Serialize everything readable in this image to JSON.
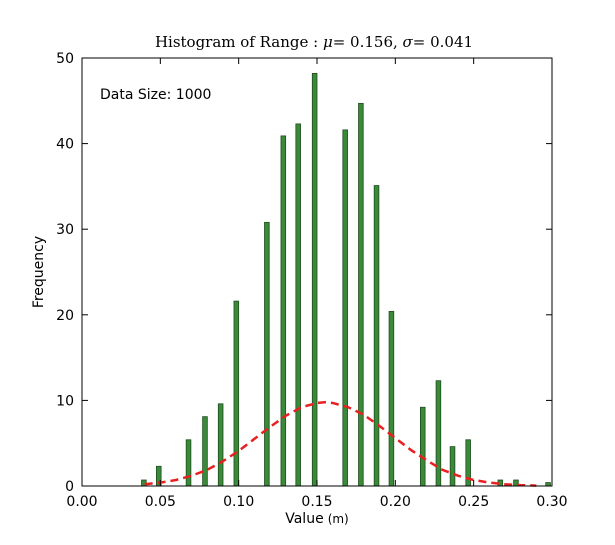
{
  "chart_data": {
    "type": "bar",
    "title": "Histogram of Range: μ = 0.156, σ = 0.041",
    "title_parts": {
      "prefix": "Histogram of Range : ",
      "mu_symbol": "μ",
      "mu_value": "= 0.156",
      "separator": ", ",
      "sigma_symbol": "σ",
      "sigma_value": "= 0.041"
    },
    "xlabel": "Value",
    "xlabel_unit": "(m)",
    "ylabel": "Frequency",
    "xlim": [
      0.0,
      0.3
    ],
    "ylim": [
      0,
      50
    ],
    "xticks": [
      "0.00",
      "0.05",
      "0.10",
      "0.15",
      "0.20",
      "0.25",
      "0.30"
    ],
    "yticks": [
      "0",
      "10",
      "20",
      "30",
      "40",
      "50"
    ],
    "annotation": "Data Size: 1000",
    "annotation_position": "top-left",
    "grid": false,
    "bar_color": "#3a8a3a",
    "bar_edge_color": "#1e4d1e",
    "curve_color": "#e82020",
    "bin_width": 0.003,
    "series": [
      {
        "type": "bar",
        "x": [
          0.0395,
          0.049,
          0.068,
          0.0785,
          0.0885,
          0.0985,
          0.118,
          0.1285,
          0.138,
          0.1485,
          0.168,
          0.178,
          0.188,
          0.1975,
          0.2175,
          0.2275,
          0.2365,
          0.2465,
          0.267,
          0.277,
          0.2975
        ],
        "values": [
          0.7,
          2.3,
          5.4,
          8.1,
          9.6,
          21.6,
          30.8,
          40.9,
          42.3,
          48.2,
          41.6,
          44.7,
          35.1,
          20.4,
          9.2,
          12.3,
          4.6,
          5.4,
          0.7,
          0.7,
          0.4
        ]
      },
      {
        "type": "line",
        "style": "dashed",
        "x": [
          0.04,
          0.05,
          0.06,
          0.07,
          0.08,
          0.09,
          0.1,
          0.11,
          0.12,
          0.13,
          0.14,
          0.15,
          0.156,
          0.16,
          0.17,
          0.18,
          0.19,
          0.2,
          0.21,
          0.22,
          0.23,
          0.24,
          0.25,
          0.26,
          0.27,
          0.28,
          0.29
        ],
        "values": [
          0.2,
          0.4,
          0.7,
          1.2,
          1.9,
          2.9,
          4.1,
          5.5,
          6.9,
          8.2,
          9.2,
          9.7,
          9.8,
          9.7,
          9.2,
          8.3,
          7.0,
          5.6,
          4.2,
          3.0,
          1.9,
          1.2,
          0.7,
          0.4,
          0.2,
          0.1,
          0.05
        ]
      }
    ]
  }
}
